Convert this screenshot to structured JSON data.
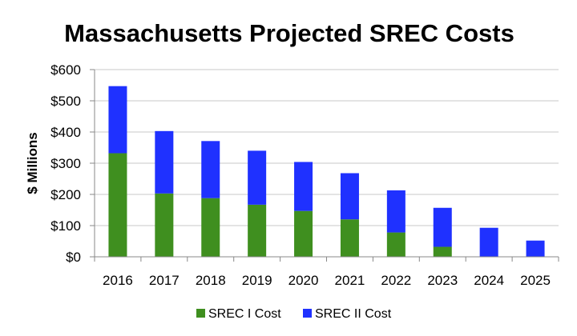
{
  "chart_data": {
    "type": "bar",
    "stacked": true,
    "title": "Massachusetts Projected SREC Costs",
    "xlabel": "",
    "ylabel": "$ Millions",
    "categories": [
      "2016",
      "2017",
      "2018",
      "2019",
      "2020",
      "2021",
      "2022",
      "2023",
      "2024",
      "2025"
    ],
    "series": [
      {
        "name": "SREC I Cost",
        "color": "#3f8f1f",
        "values": [
          332,
          203,
          188,
          167,
          147,
          120,
          78,
          32,
          0,
          0
        ]
      },
      {
        "name": "SREC II Cost",
        "color": "#1f31ff",
        "values": [
          215,
          200,
          183,
          173,
          157,
          148,
          135,
          125,
          93,
          52
        ]
      }
    ],
    "ylim": [
      0,
      600
    ],
    "yticks": [
      0,
      100,
      200,
      300,
      400,
      500,
      600
    ],
    "ytick_labels": [
      "$0",
      "$100",
      "$200",
      "$300",
      "$400",
      "$500",
      "$600"
    ],
    "grid": true,
    "legend_position": "bottom"
  }
}
